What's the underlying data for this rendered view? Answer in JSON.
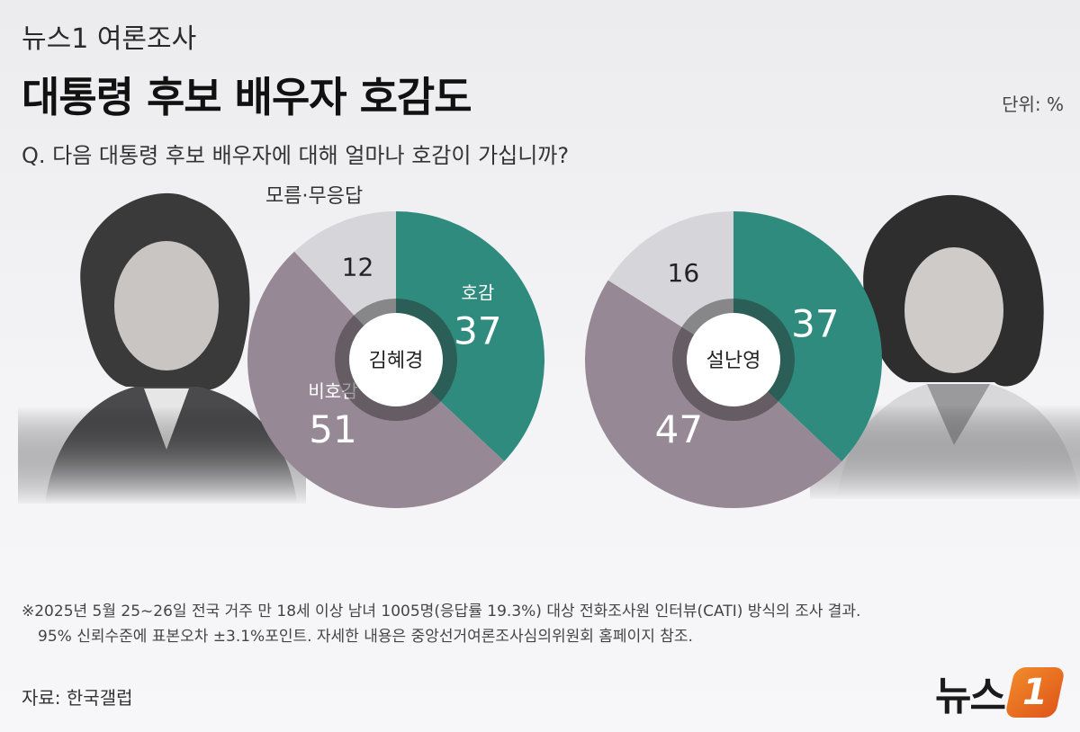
{
  "header": {
    "brand_sub": "뉴스1 여론조사",
    "title": "대통령 후보 배우자 호감도",
    "unit": "단위: %",
    "question": "Q. 다음 대통령 후보 배우자에 대해 얼마나 호감이 가십니까?"
  },
  "chart_data": [
    {
      "type": "pie",
      "style": "donut",
      "center_label": "김혜경",
      "legend_note": "모름·무응답",
      "slices": [
        {
          "name": "호감",
          "value": 37,
          "color": "#2e8b7e",
          "show_name": true
        },
        {
          "name": "비호감",
          "value": 51,
          "color": "#978896",
          "show_name": true
        },
        {
          "name": "모름·무응답",
          "value": 12,
          "color": "#d6d6da",
          "show_name": false
        }
      ]
    },
    {
      "type": "pie",
      "style": "donut",
      "center_label": "설난영",
      "slices": [
        {
          "name": "호감",
          "value": 37,
          "color": "#2e8b7e",
          "show_name": false
        },
        {
          "name": "비호감",
          "value": 47,
          "color": "#978896",
          "show_name": false
        },
        {
          "name": "모름·무응답",
          "value": 16,
          "color": "#d6d6da",
          "show_name": false
        }
      ]
    }
  ],
  "footnote": {
    "line1": "※2025년 5월 25~26일 전국 거주 만 18세 이상 남녀 1005명(응답률 19.3%) 대상 전화조사원 인터뷰(CATI) 방식의 조사 결과.",
    "line2": "95% 신뢰수준에 표본오차 ±3.1%포인트. 자세한 내용은 중앙선거여론조사심의위원회 홈페이지 참조."
  },
  "source": "자료: 한국갤럽",
  "logo": {
    "text": "뉴스",
    "mark": "1"
  }
}
